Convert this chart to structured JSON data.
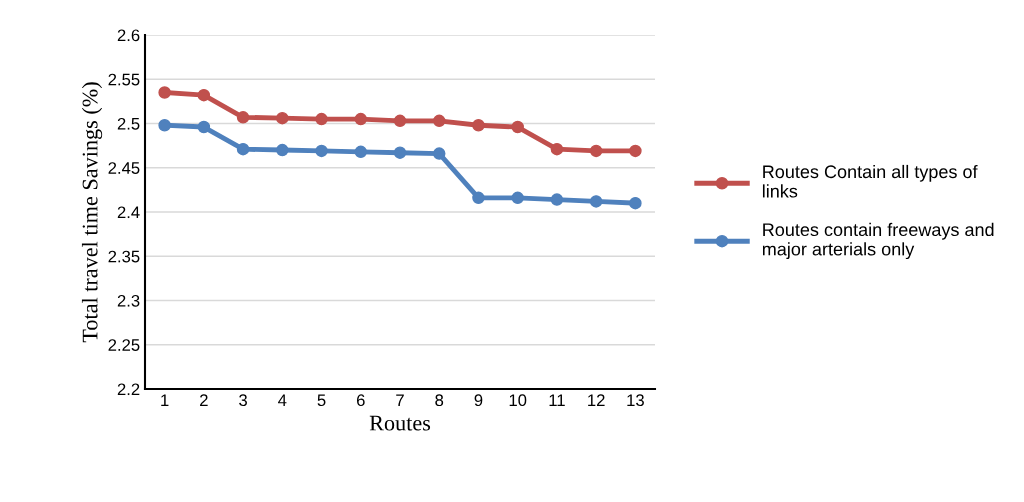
{
  "chart_data": {
    "type": "line",
    "xlabel": "Routes",
    "ylabel": "Total travel time Savings (%)",
    "categories": [
      "1",
      "2",
      "3",
      "4",
      "5",
      "6",
      "7",
      "8",
      "9",
      "10",
      "11",
      "12",
      "13"
    ],
    "series": [
      {
        "name": "Routes Contain all types of links",
        "color": "#c0504d",
        "values": [
          2.535,
          2.532,
          2.507,
          2.506,
          2.505,
          2.505,
          2.503,
          2.503,
          2.498,
          2.496,
          2.471,
          2.469,
          2.469
        ]
      },
      {
        "name": "Routes contain freeways and major arterials only",
        "color": "#4f81bd",
        "values": [
          2.498,
          2.496,
          2.471,
          2.47,
          2.469,
          2.468,
          2.467,
          2.466,
          2.416,
          2.416,
          2.414,
          2.412,
          2.41
        ]
      }
    ],
    "ylim": [
      2.2,
      2.6
    ],
    "yticks": [
      {
        "value": 2.2,
        "label": "2.2"
      },
      {
        "value": 2.25,
        "label": "2.25"
      },
      {
        "value": 2.3,
        "label": "2.3"
      },
      {
        "value": 2.35,
        "label": "2.35"
      },
      {
        "value": 2.4,
        "label": "2.4"
      },
      {
        "value": 2.45,
        "label": "2.45"
      },
      {
        "value": 2.5,
        "label": "2.5"
      },
      {
        "value": 2.55,
        "label": "2.55"
      },
      {
        "value": 2.6,
        "label": "2.6"
      }
    ],
    "grid": "y",
    "legend": "right",
    "marker": "circle",
    "line_style": "solid"
  }
}
